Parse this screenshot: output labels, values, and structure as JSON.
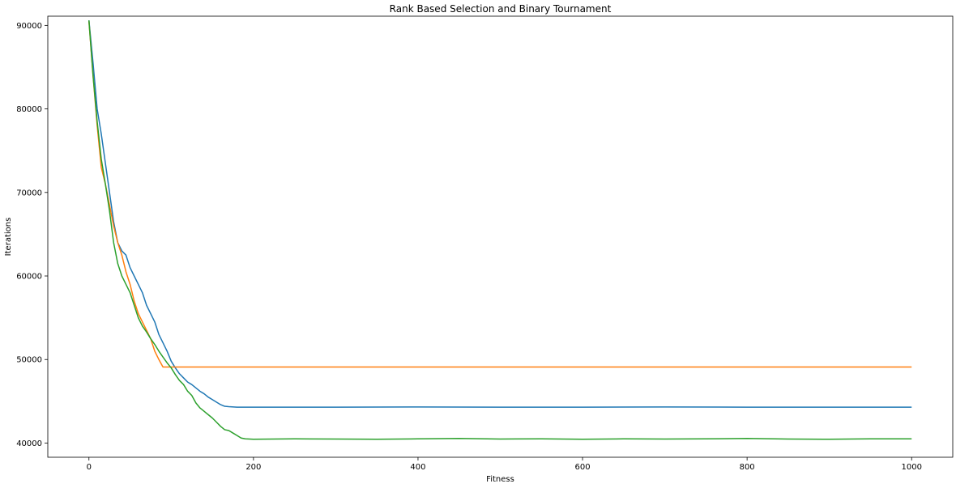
{
  "chart_data": {
    "type": "line",
    "title": "Rank Based Selection and Binary Tournament",
    "xlabel": "Fitness",
    "ylabel": "Iterations",
    "xlim": [
      -50,
      1050
    ],
    "ylim": [
      38300,
      91100
    ],
    "xticks": [
      0,
      200,
      400,
      600,
      800,
      1000
    ],
    "yticks": [
      40000,
      50000,
      60000,
      70000,
      80000,
      90000
    ],
    "grid": false,
    "series": [
      {
        "color": "#1f77b4",
        "x": [
          0,
          5,
          10,
          15,
          20,
          25,
          30,
          35,
          40,
          45,
          50,
          55,
          60,
          65,
          70,
          75,
          80,
          85,
          90,
          95,
          100,
          105,
          110,
          115,
          120,
          125,
          130,
          135,
          140,
          145,
          150,
          155,
          160,
          165,
          170,
          180,
          200,
          300,
          400,
          500,
          600,
          700,
          800,
          900,
          1000
        ],
        "y": [
          90600,
          85500,
          80000,
          77000,
          73500,
          70000,
          66500,
          64000,
          63000,
          62500,
          61000,
          60000,
          59000,
          58000,
          56500,
          55500,
          54500,
          53000,
          52000,
          51000,
          49800,
          49000,
          48300,
          47800,
          47300,
          47000,
          46600,
          46200,
          45900,
          45500,
          45200,
          44900,
          44600,
          44400,
          44350,
          44300,
          44300,
          44300,
          44320,
          44300,
          44300,
          44320,
          44300,
          44300,
          44300
        ]
      },
      {
        "color": "#ff7f0e",
        "x": [
          0,
          5,
          10,
          15,
          20,
          25,
          30,
          35,
          40,
          45,
          50,
          55,
          60,
          65,
          70,
          75,
          80,
          85,
          90,
          95,
          100,
          200,
          300,
          400,
          500,
          600,
          700,
          800,
          900,
          1000
        ],
        "y": [
          90500,
          84000,
          78000,
          73000,
          71000,
          68500,
          66000,
          64000,
          62500,
          60500,
          59000,
          57000,
          55500,
          54500,
          53500,
          52500,
          51000,
          50000,
          49100,
          49100,
          49100,
          49100,
          49100,
          49100,
          49100,
          49100,
          49100,
          49100,
          49100,
          49100
        ]
      },
      {
        "color": "#2ca02c",
        "x": [
          0,
          5,
          10,
          15,
          20,
          25,
          30,
          35,
          40,
          45,
          50,
          55,
          60,
          65,
          70,
          75,
          80,
          85,
          90,
          95,
          100,
          105,
          110,
          115,
          120,
          125,
          130,
          135,
          140,
          145,
          150,
          155,
          160,
          165,
          170,
          175,
          180,
          185,
          190,
          200,
          250,
          300,
          350,
          400,
          450,
          500,
          550,
          600,
          650,
          700,
          750,
          800,
          850,
          900,
          950,
          1000
        ],
        "y": [
          90600,
          84000,
          78500,
          74000,
          71000,
          67800,
          64000,
          61500,
          60000,
          59000,
          58000,
          56500,
          55000,
          54000,
          53300,
          52500,
          51800,
          51000,
          50300,
          49600,
          49000,
          48200,
          47500,
          47000,
          46200,
          45700,
          44800,
          44200,
          43800,
          43400,
          43000,
          42500,
          42000,
          41600,
          41500,
          41200,
          40900,
          40600,
          40500,
          40450,
          40500,
          40480,
          40450,
          40500,
          40550,
          40480,
          40500,
          40450,
          40500,
          40480,
          40500,
          40550,
          40480,
          40450,
          40500,
          40500
        ]
      }
    ]
  }
}
